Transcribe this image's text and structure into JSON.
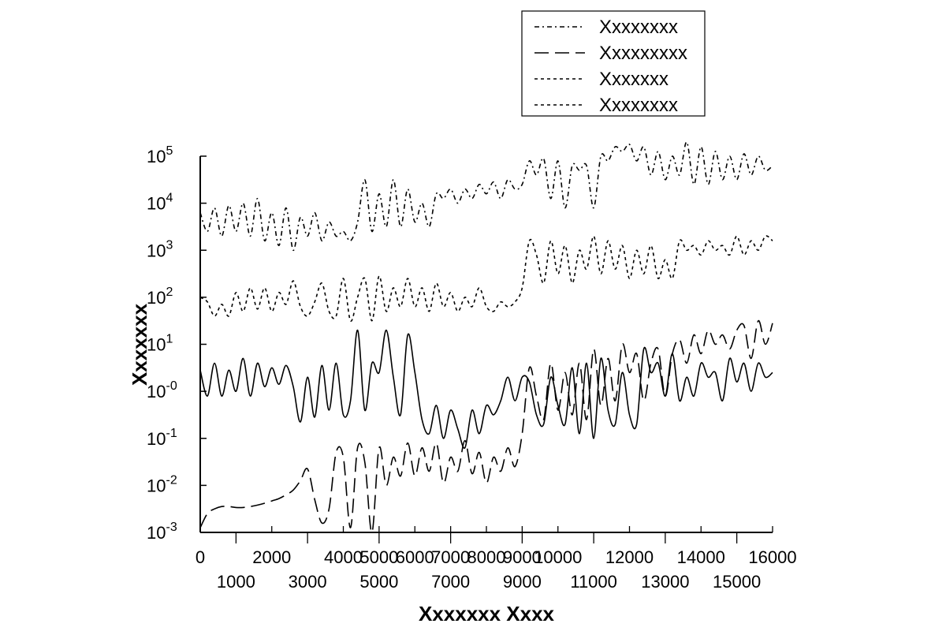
{
  "chart_data": {
    "type": "line",
    "title": "",
    "xlabel": "Xxxxxxx Xxxx",
    "ylabel": "Xxxxxxx",
    "xlim": [
      0,
      16000
    ],
    "ylim_log10": [
      -3,
      5
    ],
    "yscale": "log",
    "x_ticks_row1": [
      "0",
      "2000",
      "4000",
      "5000",
      "6000",
      "7000",
      "8000",
      "9000",
      "10000",
      "12000",
      "14000",
      "16000"
    ],
    "x_ticks_row2": [
      "1000",
      "3000",
      "5000",
      "7000",
      "9000",
      "11000",
      "13000",
      "15000"
    ],
    "x_ticks_row1_values": [
      0,
      2000,
      4000,
      5000,
      6000,
      7000,
      8000,
      9000,
      10000,
      12000,
      14000,
      16000
    ],
    "x_ticks_row2_values": [
      1000,
      3000,
      5000,
      7000,
      9000,
      11000,
      13000,
      15000
    ],
    "y_ticks": [
      {
        "exp": -3,
        "base": "10",
        "sup": "-3"
      },
      {
        "exp": -2,
        "base": "10",
        "sup": "-2"
      },
      {
        "exp": -1,
        "base": "10",
        "sup": "-1"
      },
      {
        "exp": 0,
        "base": "10",
        "sup": "-0"
      },
      {
        "exp": 1,
        "base": "10",
        "sup": "1"
      },
      {
        "exp": 2,
        "base": "10",
        "sup": "2"
      },
      {
        "exp": 3,
        "base": "10",
        "sup": "3"
      },
      {
        "exp": 4,
        "base": "10",
        "sup": "4"
      },
      {
        "exp": 5,
        "base": "10",
        "sup": "5"
      }
    ],
    "legend": {
      "position": "top-right",
      "entries": [
        {
          "label": "Xxxxxxxx",
          "dash": "dashdot"
        },
        {
          "label": "Xxxxxxxxx",
          "dash": "longdash"
        },
        {
          "label": "Xxxxxxx",
          "dash": "dotted"
        },
        {
          "label": "Xxxxxxxx",
          "dash": "dotted"
        }
      ]
    },
    "series": [
      {
        "name": "Xxxxxxxx",
        "dash": "dashdot",
        "x": [
          0,
          200,
          400,
          600,
          800,
          1000,
          1200,
          1400,
          1600,
          1800,
          2000,
          2200,
          2400,
          2600,
          2800,
          3000,
          3200,
          3400,
          3600,
          3800,
          4000,
          4200,
          4400,
          4600,
          4800,
          5000,
          5200,
          5400,
          5600,
          5800,
          6000,
          6200,
          6400,
          6600,
          6800,
          7000,
          7200,
          7400,
          7600,
          7800,
          8000,
          8200,
          8400,
          8600,
          8800,
          9000,
          9200,
          9400,
          9600,
          9800,
          10000,
          10200,
          10400,
          10600,
          10800,
          11000,
          11200,
          11400,
          11600,
          11800,
          12000,
          12200,
          12400,
          12600,
          12800,
          13000,
          13200,
          13400,
          13600,
          13800,
          14000,
          14200,
          14400,
          14600,
          14800,
          15000,
          15200,
          15400,
          15600,
          15800,
          16000
        ],
        "log10_y": [
          3.8,
          3.4,
          3.9,
          3.3,
          3.95,
          3.4,
          4.0,
          3.3,
          4.1,
          3.2,
          3.8,
          3.1,
          3.9,
          3.0,
          3.7,
          3.3,
          3.8,
          3.2,
          3.6,
          3.3,
          3.4,
          3.2,
          3.6,
          4.5,
          3.4,
          4.2,
          3.5,
          4.5,
          3.5,
          4.3,
          3.6,
          4.0,
          3.5,
          4.2,
          4.1,
          4.3,
          4.0,
          4.3,
          4.1,
          4.4,
          4.2,
          4.45,
          4.1,
          4.5,
          4.3,
          4.4,
          4.9,
          4.6,
          4.95,
          4.1,
          4.9,
          3.9,
          4.8,
          4.7,
          4.8,
          3.9,
          5.0,
          4.9,
          5.2,
          5.1,
          5.25,
          4.9,
          5.2,
          4.6,
          5.1,
          4.5,
          5.0,
          4.6,
          5.3,
          4.4,
          5.2,
          4.4,
          5.1,
          4.5,
          5.0,
          4.5,
          5.05,
          4.6,
          5.0,
          4.7,
          4.8
        ]
      },
      {
        "name": "Xxxxxxxxx",
        "dash": "longdash",
        "x": [
          0,
          200,
          400,
          600,
          800,
          1000,
          1200,
          1400,
          1600,
          1800,
          2000,
          2200,
          2400,
          2600,
          2800,
          3000,
          3200,
          3400,
          3600,
          3800,
          4000,
          4200,
          4400,
          4600,
          4800,
          5000,
          5200,
          5400,
          5600,
          5800,
          6000,
          6200,
          6400,
          6600,
          6800,
          7000,
          7200,
          7400,
          7600,
          7800,
          8000,
          8200,
          8400,
          8600,
          8800,
          9000,
          9200,
          9400,
          9600,
          9800,
          10000,
          10200,
          10400,
          10600,
          10800,
          11000,
          11200,
          11400,
          11600,
          11800,
          12000,
          12200,
          12400,
          12600,
          12800,
          13000,
          13200,
          13400,
          13600,
          13800,
          14000,
          14200,
          14400,
          14600,
          14800,
          15000,
          15200,
          15400,
          15600,
          15800,
          16000
        ],
        "log10_y": [
          -2.9,
          -2.6,
          -2.5,
          -2.45,
          -2.45,
          -2.47,
          -2.47,
          -2.45,
          -2.42,
          -2.38,
          -2.33,
          -2.28,
          -2.2,
          -2.1,
          -1.9,
          -1.65,
          -2.3,
          -2.8,
          -2.5,
          -1.3,
          -1.4,
          -2.9,
          -1.2,
          -1.5,
          -3.0,
          -1.2,
          -2.0,
          -1.4,
          -1.8,
          -1.1,
          -1.8,
          -1.2,
          -1.7,
          -1.1,
          -1.95,
          -1.4,
          -1.7,
          -1.05,
          -1.75,
          -1.3,
          -1.95,
          -1.4,
          -1.7,
          -1.2,
          -1.6,
          -0.9,
          0.5,
          -0.1,
          -0.6,
          0.6,
          -0.4,
          0.4,
          -0.5,
          0.6,
          -0.6,
          0.9,
          -0.3,
          0.7,
          -0.2,
          1.0,
          0.4,
          0.8,
          -0.2,
          0.6,
          0.9,
          -0.1,
          0.8,
          1.1,
          0.6,
          1.2,
          0.8,
          1.3,
          1.0,
          1.2,
          0.9,
          1.3,
          1.4,
          0.7,
          1.5,
          1.0,
          1.45
        ]
      },
      {
        "name": "Xxxxxxx",
        "dash": "dotted",
        "x": [
          0,
          200,
          400,
          600,
          800,
          1000,
          1200,
          1400,
          1600,
          1800,
          2000,
          2200,
          2400,
          2600,
          2800,
          3000,
          3200,
          3400,
          3600,
          3800,
          4000,
          4200,
          4400,
          4600,
          4800,
          5000,
          5200,
          5400,
          5600,
          5800,
          6000,
          6200,
          6400,
          6600,
          6800,
          7000,
          7200,
          7400,
          7600,
          7800,
          8000,
          8200,
          8400,
          8600,
          8800,
          9000,
          9200,
          9400,
          9600,
          9800,
          10000,
          10200,
          10400,
          10600,
          10800,
          11000,
          11200,
          11400,
          11600,
          11800,
          12000,
          12200,
          12400,
          12600,
          12800,
          13000,
          13200,
          13400,
          13600,
          13800,
          14000,
          14200,
          14400,
          14600,
          14800,
          15000,
          15200,
          15400,
          15600,
          15800,
          16000
        ],
        "log10_y": [
          2.0,
          1.9,
          1.6,
          1.85,
          1.6,
          2.1,
          1.7,
          2.2,
          1.75,
          2.2,
          1.7,
          2.1,
          1.85,
          2.35,
          1.8,
          1.6,
          1.9,
          2.3,
          1.7,
          1.6,
          2.4,
          1.5,
          2.0,
          2.4,
          1.5,
          2.45,
          1.7,
          2.2,
          1.8,
          2.4,
          1.8,
          2.2,
          1.7,
          2.3,
          1.8,
          2.1,
          1.7,
          2.0,
          1.8,
          2.2,
          1.8,
          1.7,
          1.9,
          1.8,
          1.9,
          2.2,
          3.2,
          2.9,
          2.3,
          3.2,
          2.5,
          3.1,
          2.3,
          3.0,
          2.6,
          3.3,
          2.5,
          3.2,
          2.6,
          3.1,
          2.4,
          3.0,
          2.5,
          3.1,
          2.4,
          2.8,
          2.4,
          3.2,
          3.0,
          3.1,
          2.9,
          3.2,
          3.0,
          3.1,
          2.9,
          3.3,
          2.9,
          3.2,
          3.0,
          3.3,
          3.2
        ]
      },
      {
        "name": "Xxxxxxxx",
        "dash": "solid",
        "x": [
          0,
          200,
          400,
          600,
          800,
          1000,
          1200,
          1400,
          1600,
          1800,
          2000,
          2200,
          2400,
          2600,
          2800,
          3000,
          3200,
          3400,
          3600,
          3800,
          4000,
          4200,
          4400,
          4600,
          4800,
          5000,
          5200,
          5400,
          5600,
          5800,
          6000,
          6200,
          6400,
          6600,
          6800,
          7000,
          7200,
          7400,
          7600,
          7800,
          8000,
          8200,
          8400,
          8600,
          8800,
          9000,
          9200,
          9400,
          9600,
          9800,
          10000,
          10200,
          10400,
          10600,
          10800,
          11000,
          11200,
          11400,
          11600,
          11800,
          12000,
          12200,
          12400,
          12600,
          12800,
          13000,
          13200,
          13400,
          13600,
          13800,
          14000,
          14200,
          14400,
          14600,
          14800,
          15000,
          15200,
          15400,
          15600,
          15800,
          16000
        ],
        "log10_y": [
          0.45,
          -0.1,
          0.6,
          -0.1,
          0.45,
          0.0,
          0.7,
          -0.1,
          0.6,
          0.1,
          0.5,
          0.15,
          0.55,
          0.1,
          -0.65,
          0.3,
          -0.55,
          0.55,
          -0.4,
          0.6,
          -0.5,
          -0.2,
          1.3,
          -0.4,
          0.6,
          0.4,
          1.3,
          0.3,
          -0.5,
          1.2,
          0.4,
          -0.6,
          -0.9,
          -0.3,
          -1.0,
          -0.4,
          -0.8,
          -1.2,
          -0.4,
          -0.9,
          -0.3,
          -0.5,
          -0.2,
          0.3,
          -0.2,
          0.3,
          0.2,
          -0.5,
          -0.7,
          0.3,
          -0.3,
          -0.7,
          0.5,
          -0.9,
          0.6,
          -1.0,
          0.7,
          -0.4,
          -0.7,
          0.4,
          -0.5,
          -0.7,
          0.9,
          0.4,
          0.6,
          -0.1,
          0.8,
          -0.2,
          0.3,
          -0.1,
          0.6,
          0.3,
          0.4,
          -0.2,
          0.7,
          0.2,
          0.6,
          0.0,
          0.6,
          0.3,
          0.4
        ]
      }
    ]
  }
}
